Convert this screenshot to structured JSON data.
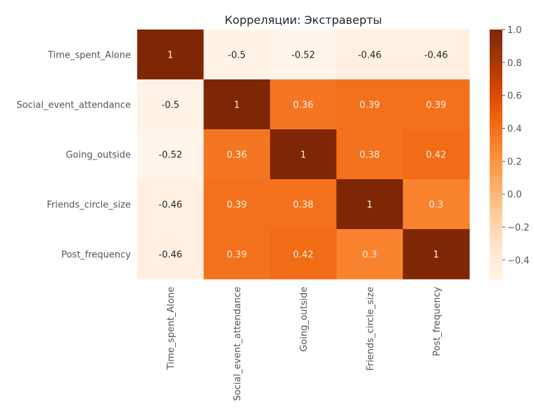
{
  "chart_data": {
    "type": "heatmap",
    "title": "Корреляции: Экстраверты",
    "row_labels": [
      "Time_spent_Alone",
      "Social_event_attendance",
      "Going_outside",
      "Friends_circle_size",
      "Post_frequency"
    ],
    "col_labels": [
      "Time_spent_Alone",
      "Social_event_attendance",
      "Going_outside",
      "Friends_circle_size",
      "Post_frequency"
    ],
    "values": [
      [
        1,
        -0.5,
        -0.52,
        -0.46,
        -0.46
      ],
      [
        -0.5,
        1,
        0.36,
        0.39,
        0.39
      ],
      [
        -0.52,
        0.36,
        1,
        0.38,
        0.42
      ],
      [
        -0.46,
        0.39,
        0.38,
        1,
        0.3
      ],
      [
        -0.46,
        0.39,
        0.42,
        0.3,
        1
      ]
    ],
    "annotations": [
      [
        "1",
        "-0.5",
        "-0.52",
        "-0.46",
        "-0.46"
      ],
      [
        "-0.5",
        "1",
        "0.36",
        "0.39",
        "0.39"
      ],
      [
        "-0.52",
        "0.36",
        "1",
        "0.38",
        "0.42"
      ],
      [
        "-0.46",
        "0.39",
        "0.38",
        "1",
        "0.3"
      ],
      [
        "-0.46",
        "0.39",
        "0.42",
        "0.3",
        "1"
      ]
    ],
    "colormap": "Oranges",
    "vmin": -0.52,
    "vmax": 1.0,
    "colorbar": {
      "ticks": [
        1.0,
        0.8,
        0.6,
        0.4,
        0.2,
        0.0,
        -0.2,
        -0.4
      ],
      "tick_labels": [
        "1.0",
        "0.8",
        "0.6",
        "0.4",
        "0.2",
        "0.0",
        "−0.2",
        "−0.4"
      ],
      "placement": "right"
    }
  }
}
